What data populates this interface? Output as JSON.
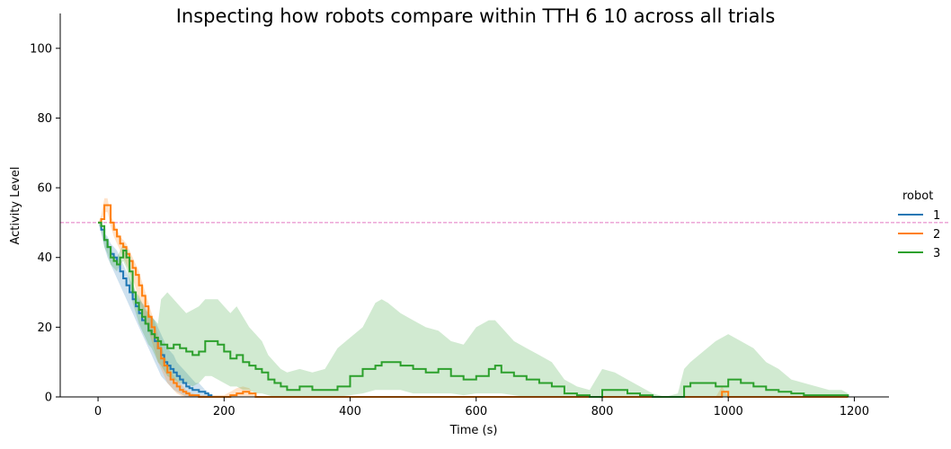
{
  "chart_data": {
    "type": "line",
    "title": "Inspecting how robots compare within TTH 6 10 across all trials",
    "xlabel": "Time (s)",
    "ylabel": "Activity Level",
    "xlim": [
      -60,
      1255
    ],
    "ylim": [
      0,
      110
    ],
    "xticks": [
      0,
      200,
      400,
      600,
      800,
      1000,
      1200
    ],
    "yticks": [
      0,
      20,
      40,
      60,
      80,
      100
    ],
    "reference_line": {
      "y": 50,
      "color": "#e377c2",
      "style": "dashed"
    },
    "legend": {
      "title": "robot",
      "placement": "right"
    },
    "series": [
      {
        "name": "1",
        "color": "#1f77b4",
        "x": [
          0,
          5,
          10,
          15,
          20,
          25,
          30,
          35,
          40,
          45,
          50,
          55,
          60,
          65,
          70,
          75,
          80,
          85,
          90,
          95,
          100,
          105,
          110,
          115,
          120,
          125,
          130,
          135,
          140,
          145,
          150,
          155,
          160,
          165,
          170,
          175,
          180
        ],
        "y": [
          50,
          48,
          45,
          43,
          41,
          40,
          38,
          36,
          34,
          32,
          30,
          28,
          26,
          24,
          22,
          21,
          19,
          18,
          16,
          14,
          12,
          10,
          9,
          8,
          7,
          6,
          5,
          4,
          3,
          2.5,
          2,
          2,
          1.5,
          1.5,
          1,
          0.5,
          0
        ],
        "lower": [
          50,
          47,
          43,
          40,
          38,
          36,
          34,
          32,
          30,
          28,
          26,
          24,
          22,
          20,
          18,
          16,
          14,
          12,
          10,
          8,
          6,
          5,
          4,
          3,
          2,
          1.5,
          1,
          0.5,
          0,
          0,
          0,
          0,
          0,
          0,
          0,
          0,
          0
        ],
        "upper": [
          50,
          49,
          47,
          46,
          44,
          43,
          42,
          40,
          38,
          36,
          34,
          32,
          30,
          28,
          27,
          26,
          24,
          23,
          22,
          20,
          18,
          16,
          14,
          13,
          12,
          10,
          9,
          8,
          7,
          6,
          5,
          4,
          4,
          3,
          2,
          1.5,
          0
        ]
      },
      {
        "name": "2",
        "color": "#ff7f0e",
        "x": [
          0,
          5,
          10,
          15,
          20,
          25,
          30,
          35,
          40,
          45,
          50,
          55,
          60,
          65,
          70,
          75,
          80,
          85,
          90,
          95,
          100,
          105,
          110,
          115,
          120,
          125,
          130,
          135,
          140,
          145,
          150,
          160,
          170,
          180,
          190,
          200,
          210,
          220,
          230,
          240,
          250,
          300,
          350,
          400,
          500,
          600,
          700,
          800,
          900,
          950,
          980,
          990,
          1000,
          1010,
          1050,
          1100,
          1150,
          1190
        ],
        "y": [
          50,
          51,
          55,
          55,
          50,
          48,
          46,
          44,
          43,
          41,
          39,
          37,
          35,
          32,
          29,
          26,
          23,
          20,
          17,
          14,
          11,
          9,
          7,
          5,
          4,
          3,
          2,
          1.5,
          1,
          0.5,
          0.5,
          0,
          0,
          0,
          0,
          0,
          0.5,
          1,
          1.5,
          1,
          0,
          0,
          0,
          0,
          0,
          0,
          0,
          0,
          0,
          0,
          0,
          1.5,
          0,
          0,
          0,
          0,
          0,
          0
        ],
        "lower": [
          50,
          50,
          53,
          53,
          49,
          46,
          44,
          42,
          40,
          38,
          36,
          34,
          31,
          28,
          25,
          22,
          19,
          16,
          13,
          10,
          8,
          6,
          4,
          3,
          2,
          1,
          0.5,
          0,
          0,
          0,
          0,
          0,
          0,
          0,
          0,
          0,
          0,
          0,
          0,
          0,
          0,
          0,
          0,
          0,
          0,
          0,
          0,
          0,
          0,
          0,
          0,
          0,
          0,
          0,
          0,
          0,
          0,
          0
        ],
        "upper": [
          50,
          52,
          57,
          57,
          52,
          50,
          48,
          46,
          45,
          44,
          42,
          40,
          38,
          36,
          33,
          30,
          27,
          24,
          21,
          18,
          15,
          12,
          10,
          8,
          6,
          5,
          4,
          3,
          2,
          1.5,
          1,
          0.5,
          0.5,
          0.5,
          0.5,
          0.5,
          1.5,
          2.5,
          3,
          2.5,
          0,
          0,
          0,
          0,
          0,
          0,
          0,
          0,
          0,
          0,
          0,
          3,
          0,
          0,
          0,
          0,
          0,
          0
        ]
      },
      {
        "name": "3",
        "color": "#2ca02c",
        "x": [
          0,
          5,
          10,
          15,
          20,
          25,
          30,
          35,
          40,
          45,
          50,
          55,
          60,
          65,
          70,
          75,
          80,
          85,
          90,
          95,
          100,
          110,
          120,
          130,
          140,
          150,
          160,
          170,
          180,
          190,
          200,
          210,
          220,
          230,
          240,
          250,
          260,
          270,
          280,
          290,
          300,
          320,
          340,
          360,
          380,
          400,
          420,
          440,
          450,
          460,
          480,
          500,
          520,
          540,
          560,
          580,
          600,
          620,
          630,
          640,
          660,
          680,
          700,
          720,
          740,
          760,
          780,
          800,
          820,
          840,
          860,
          880,
          900,
          920,
          930,
          940,
          960,
          980,
          1000,
          1020,
          1040,
          1060,
          1080,
          1100,
          1120,
          1140,
          1160,
          1180,
          1190
        ],
        "y": [
          50,
          49,
          45,
          43,
          40,
          39,
          38,
          40,
          42,
          40,
          36,
          30,
          27,
          25,
          23,
          21,
          19,
          18,
          17,
          16,
          15,
          14,
          15,
          14,
          13,
          12,
          13,
          16,
          16,
          15,
          13,
          11,
          12,
          10,
          9,
          8,
          7,
          5,
          4,
          3,
          2,
          3,
          2,
          2,
          3,
          6,
          8,
          9,
          10,
          10,
          9,
          8,
          7,
          8,
          6,
          5,
          6,
          8,
          9,
          7,
          6,
          5,
          4,
          3,
          1,
          0.5,
          0,
          2,
          2,
          1,
          0.5,
          0,
          0,
          0,
          3,
          4,
          4,
          3,
          5,
          4,
          3,
          2,
          1.5,
          1,
          0.5,
          0.5,
          0.5,
          0.5,
          0
        ],
        "lower": [
          50,
          48,
          43,
          41,
          38,
          37,
          36,
          38,
          39,
          37,
          33,
          27,
          24,
          21,
          19,
          17,
          15,
          14,
          12,
          10,
          9,
          6,
          5,
          4,
          4,
          3,
          4,
          6,
          6,
          5,
          4,
          3,
          3,
          2,
          2,
          1,
          1,
          0.5,
          0,
          0,
          0,
          0,
          0,
          0,
          0,
          0.5,
          1,
          2,
          2,
          2,
          2,
          1,
          1,
          1,
          1,
          0.5,
          1,
          1,
          1,
          1,
          0.5,
          0,
          0,
          0,
          0,
          0,
          0,
          0,
          0,
          0,
          0,
          0,
          0,
          0,
          0,
          0,
          0,
          0,
          0,
          0,
          0,
          0,
          0,
          0,
          0,
          0,
          0,
          0,
          0
        ],
        "upper": [
          50,
          50,
          47,
          45,
          42,
          41,
          40,
          42,
          44,
          43,
          39,
          33,
          30,
          29,
          27,
          25,
          24,
          23,
          22,
          21,
          28,
          30,
          28,
          26,
          24,
          25,
          26,
          28,
          28,
          28,
          26,
          24,
          26,
          23,
          20,
          18,
          16,
          12,
          10,
          8,
          7,
          8,
          7,
          8,
          14,
          17,
          20,
          27,
          28,
          27,
          24,
          22,
          20,
          19,
          16,
          15,
          20,
          22,
          22,
          20,
          16,
          14,
          12,
          10,
          5,
          3,
          2,
          8,
          7,
          5,
          3,
          1,
          0,
          1,
          8,
          10,
          13,
          16,
          18,
          16,
          14,
          10,
          8,
          5,
          4,
          3,
          2,
          2,
          1
        ]
      }
    ]
  }
}
